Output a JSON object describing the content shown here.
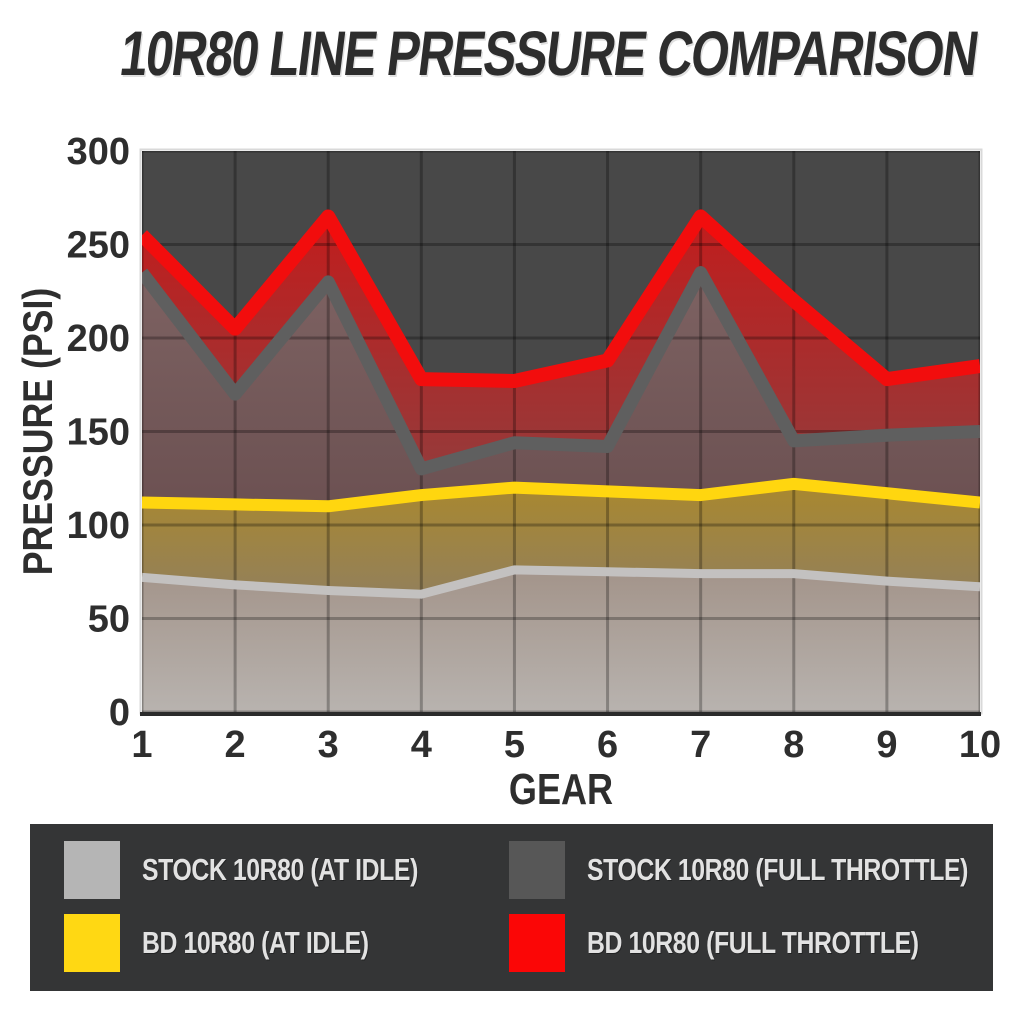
{
  "title": "10R80 LINE PRESSURE COMPARISON",
  "chart_data": {
    "type": "area",
    "title": "10R80 LINE PRESSURE COMPARISON",
    "xlabel": "GEAR",
    "ylabel": "PRESSURE (PSI)",
    "x": [
      1,
      2,
      3,
      4,
      5,
      6,
      7,
      8,
      9,
      10
    ],
    "ylim": [
      0,
      300
    ],
    "yticks": [
      0,
      50,
      100,
      150,
      200,
      250,
      300
    ],
    "grid": true,
    "legend_position": "bottom",
    "plot_background": "#484848",
    "series": [
      {
        "name": "BD 10R80 (FULL THROTTLE)",
        "values": [
          255,
          205,
          265,
          178,
          177,
          188,
          265,
          220,
          178,
          185
        ],
        "line_color": "#f20d0d",
        "line_width": 14,
        "fill_top": "#c11d1d",
        "fill_bottom": "#963a3a"
      },
      {
        "name": "STOCK 10R80 (FULL THROTTLE)",
        "values": [
          235,
          170,
          230,
          130,
          144,
          142,
          235,
          145,
          148,
          150
        ],
        "line_color": "#5f5f5f",
        "line_width": 13,
        "fill_top": "#7d6262",
        "fill_bottom": "#6c5152"
      },
      {
        "name": "BD 10R80 (AT IDLE)",
        "values": [
          112,
          111,
          110,
          116,
          120,
          118,
          116,
          122,
          117,
          112
        ],
        "line_color": "#ffd60f",
        "line_width": 12,
        "fill_top": "#a9882e",
        "fill_bottom": "#93805a"
      },
      {
        "name": "STOCK 10R80 (AT IDLE)",
        "values": [
          72,
          68,
          65,
          63,
          76,
          75,
          74,
          74,
          70,
          67
        ],
        "line_color": "#c3c1c0",
        "line_width": 9,
        "fill_top": "#a3948a",
        "fill_bottom": "#b8b3af"
      }
    ]
  },
  "legend": {
    "items": [
      {
        "label": "STOCK 10R80 (AT IDLE)",
        "color": "#b5b5b5"
      },
      {
        "label": "STOCK 10R80 (FULL THROTTLE)",
        "color": "#575757"
      },
      {
        "label": "BD 10R80 (AT IDLE)",
        "color": "#ffd813"
      },
      {
        "label": "BD 10R80 (FULL THROTTLE)",
        "color": "#fb0606"
      }
    ]
  }
}
